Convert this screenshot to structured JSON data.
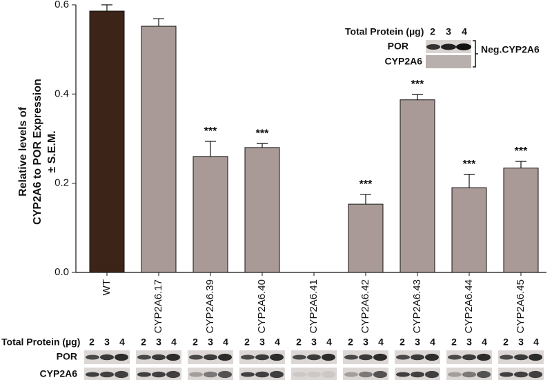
{
  "chart_data": {
    "type": "bar",
    "ylabel": [
      "Relative levels of",
      "CYP2A6 to POR Expression",
      "± S.E.M."
    ],
    "categories": [
      "WT",
      "CYP2A6.17",
      "CYP2A6.39",
      "CYP2A6.40",
      "CYP2A6.41",
      "CYP2A6.42",
      "CYP2A6.43",
      "CYP2A6.44",
      "CYP2A6.45"
    ],
    "values": [
      0.586,
      0.552,
      0.26,
      0.28,
      0,
      0.153,
      0.387,
      0.19,
      0.234
    ],
    "errors": [
      0.014,
      0.017,
      0.034,
      0.009,
      0,
      0.022,
      0.012,
      0.03,
      0.015
    ],
    "annotations": [
      null,
      null,
      "***",
      "***",
      null,
      "***",
      "***",
      "***",
      "***"
    ],
    "colors": [
      "#3d2418",
      "#a99a97",
      "#a99a97",
      "#a99a97",
      "#a99a97",
      "#a99a97",
      "#a99a97",
      "#a99a97",
      "#a99a97"
    ],
    "ylim": [
      0,
      0.6
    ],
    "yticks": [
      {
        "value": 0,
        "label": "0.0"
      },
      0.2,
      0.4,
      0.6
    ]
  },
  "blot": {
    "header": "Total Protein (µg)",
    "lanes": [
      "2",
      "3",
      "4"
    ],
    "rows": [
      "POR",
      "CYP2A6"
    ]
  },
  "inset": {
    "header": "Total Protein (µg)",
    "lanes": [
      "2",
      "3",
      "4"
    ],
    "rows": [
      "POR",
      "CYP2A6"
    ],
    "bracket_label": "Neg.CYP2A6"
  }
}
